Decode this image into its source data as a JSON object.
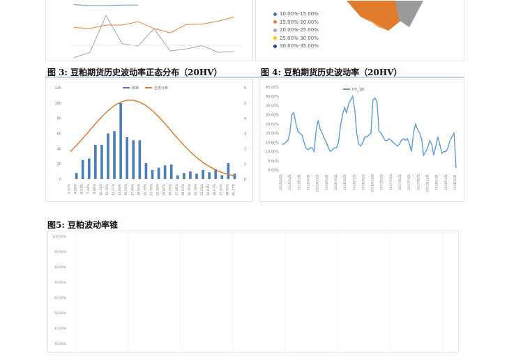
{
  "top_left_panel": {
    "colors": [
      "#5b8fc9",
      "#ed7d31",
      "#a5a5a5"
    ]
  },
  "top_right_panel": {
    "legend": [
      {
        "label": "10.00%-15.00%",
        "color": "#4472c4"
      },
      {
        "label": "15.00%-20.00%",
        "color": "#ed7d31"
      },
      {
        "label": "20.00%-25.00%",
        "color": "#a5a5a5"
      },
      {
        "label": "25.00%-30.00%",
        "color": "#ffc000"
      },
      {
        "label": "30.00%-35.00%",
        "color": "#264478"
      }
    ]
  },
  "figure3": {
    "caption": "图 3: 豆粕期货历史波动率正态分布（20HV）"
  },
  "figure4": {
    "caption": "图 4: 豆粕期货历史波动率（20HV）"
  },
  "figure5": {
    "caption": "图5: 豆粕波动率锥"
  },
  "chart_data": [
    {
      "type": "bar",
      "title": "",
      "legend": [
        "频率",
        "正态分布"
      ],
      "legend_placement": "top",
      "categories": [
        "3.15%",
        "4.58%",
        "6.01%",
        "7.44%",
        "8.88%",
        "10.31%",
        "11.74%",
        "13.17%",
        "14.60%",
        "16.03%",
        "17.46%",
        "18.90%",
        "20.33%",
        "21.76%",
        "23.19%",
        "24.62%",
        "26.05%",
        "27.48%",
        "28.91%",
        "30.35%",
        "31.78%",
        "33.21%",
        "34.64%",
        "36.07%",
        "37.50%",
        "38.93%",
        "40.37%"
      ],
      "series": [
        {
          "name": "频率",
          "type": "bar",
          "axis": "left",
          "color": "#4a7ebb",
          "values": [
            0,
            8,
            25,
            27,
            45,
            45,
            60,
            63,
            100,
            55,
            51,
            51,
            21,
            12,
            15,
            18,
            19,
            5,
            8,
            10,
            7,
            12,
            9,
            13,
            5,
            21,
            7
          ]
        },
        {
          "name": "正态分布",
          "type": "line",
          "axis": "right",
          "color": "#e07b2e",
          "values": [
            1.79,
            2.21,
            2.67,
            3.15,
            3.64,
            4.09,
            4.5,
            4.83,
            5.06,
            5.18,
            5.18,
            5.06,
            4.83,
            4.5,
            4.09,
            3.64,
            3.15,
            2.67,
            2.21,
            1.79,
            1.41,
            1.09,
            0.82,
            0.6,
            0.43,
            0.3,
            0.21
          ]
        }
      ],
      "ylim": [
        0,
        120
      ],
      "yticks": [
        0,
        20,
        40,
        60,
        80,
        100,
        120
      ],
      "y2lim": [
        0,
        6
      ],
      "y2ticks": [
        0,
        1,
        2,
        3,
        4,
        5,
        6
      ]
    },
    {
      "type": "line",
      "legend": [
        "HV_1M"
      ],
      "legend_placement": "top",
      "ylim": [
        0,
        45
      ],
      "yticks": [
        "0.00%",
        "5.00%",
        "10.00%",
        "15.00%",
        "20.00%",
        "25.00%",
        "30.00%",
        "35.00%",
        "40.00%",
        "45.00%"
      ],
      "xticks": [
        "2015/3/21",
        "2015/5/21",
        "2015/7/21",
        "2015/9/21",
        "2015/11/21",
        "2016/1/21",
        "2016/3/21",
        "2016/5/21",
        "2016/7/21",
        "2016/9/21",
        "2016/11/21",
        "2017/1/21",
        "2017/3/21",
        "2017/5/21",
        "2017/7/21",
        "2017/9/21",
        "2017/11/21",
        "2018/1/21",
        "2018/3/21",
        "2018/5/21"
      ],
      "series": [
        {
          "name": "HV_1M",
          "color": "#5b9bd5",
          "values": [
            14,
            14,
            15,
            16,
            20,
            30,
            31,
            25,
            21,
            20,
            19,
            15,
            12,
            11,
            12,
            12,
            10,
            22,
            27,
            22,
            20,
            17,
            15,
            12,
            10,
            11,
            12,
            12,
            15,
            24,
            30,
            34,
            31,
            36,
            38,
            40,
            33,
            20,
            14,
            13,
            15,
            18,
            18,
            19,
            20,
            38,
            39,
            37,
            21,
            20,
            18,
            16,
            16,
            17,
            16,
            15,
            14,
            13,
            14,
            16,
            17,
            16,
            17,
            14,
            10,
            20,
            25,
            22,
            20,
            17,
            8,
            10,
            12,
            16,
            14,
            8,
            13,
            18,
            14,
            9,
            10,
            10,
            12,
            16,
            18,
            20,
            1
          ]
        }
      ]
    },
    {
      "type": "line",
      "yticks": [
        "100.00%",
        "90.00%",
        "80.00%",
        "70.00%",
        "60.00%",
        "50.00%",
        "40.00%",
        "30.00%"
      ],
      "series": []
    }
  ]
}
